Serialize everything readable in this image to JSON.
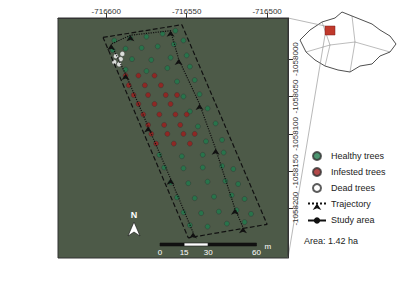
{
  "chart_data": {
    "type": "scatter",
    "xlim": [
      -716630,
      -716487
    ],
    "ylim": [
      -1058266,
      -1057945
    ],
    "xticks": [
      -716600,
      -716550,
      -716500
    ],
    "yticks": [
      -1058000,
      -1058050,
      -1058100,
      -1058150,
      -1058200
    ],
    "grid": false,
    "legend": "right",
    "series": [
      {
        "name": "Healthy trees",
        "type": "scatter",
        "color": "#1f7a4c",
        "marker": "circle",
        "values": [
          [
            -716595,
            -1057975
          ],
          [
            -716585,
            -1057972
          ],
          [
            -716575,
            -1057970
          ],
          [
            -716565,
            -1057966
          ],
          [
            -716557,
            -1057962
          ],
          [
            -716596,
            -1057988
          ],
          [
            -716588,
            -1057986
          ],
          [
            -716578,
            -1057985
          ],
          [
            -716568,
            -1057983
          ],
          [
            -716558,
            -1057980
          ],
          [
            -716552,
            -1057975
          ],
          [
            -716584,
            -1058000
          ],
          [
            -716572,
            -1058001
          ],
          [
            -716560,
            -1057998
          ],
          [
            -716550,
            -1057995
          ],
          [
            -716588,
            -1058014
          ],
          [
            -716575,
            -1058016
          ],
          [
            -716562,
            -1058012
          ],
          [
            -716548,
            -1058010
          ],
          [
            -716556,
            -1058030
          ],
          [
            -716545,
            -1058028
          ],
          [
            -716552,
            -1058050
          ],
          [
            -716542,
            -1058047
          ],
          [
            -716548,
            -1058070
          ],
          [
            -716537,
            -1058066
          ],
          [
            -716543,
            -1058090
          ],
          [
            -716532,
            -1058086
          ],
          [
            -716538,
            -1058110
          ],
          [
            -716528,
            -1058108
          ],
          [
            -716567,
            -1058128
          ],
          [
            -716553,
            -1058130
          ],
          [
            -716540,
            -1058128
          ],
          [
            -716527,
            -1058125
          ],
          [
            -716564,
            -1058145
          ],
          [
            -716552,
            -1058146
          ],
          [
            -716540,
            -1058145
          ],
          [
            -716528,
            -1058143
          ],
          [
            -716521,
            -1058147
          ],
          [
            -716560,
            -1058165
          ],
          [
            -716549,
            -1058166
          ],
          [
            -716537,
            -1058164
          ],
          [
            -716526,
            -1058163
          ],
          [
            -716518,
            -1058167
          ],
          [
            -716556,
            -1058185
          ],
          [
            -716545,
            -1058186
          ],
          [
            -716533,
            -1058184
          ],
          [
            -716522,
            -1058182
          ],
          [
            -716514,
            -1058187
          ],
          [
            -716552,
            -1058205
          ],
          [
            -716541,
            -1058206
          ],
          [
            -716530,
            -1058204
          ],
          [
            -716519,
            -1058202
          ],
          [
            -716510,
            -1058207
          ],
          [
            -716548,
            -1058222
          ],
          [
            -716537,
            -1058224
          ],
          [
            -716525,
            -1058220
          ],
          [
            -716514,
            -1058218
          ]
        ]
      },
      {
        "name": "Infested trees",
        "type": "scatter",
        "color": "#a01c1c",
        "marker": "circle",
        "values": [
          [
            -716588,
            -1058022
          ],
          [
            -716580,
            -1058022
          ],
          [
            -716570,
            -1058022
          ],
          [
            -716586,
            -1058035
          ],
          [
            -716576,
            -1058035
          ],
          [
            -716566,
            -1058035
          ],
          [
            -716583,
            -1058048
          ],
          [
            -716574,
            -1058048
          ],
          [
            -716563,
            -1058048
          ],
          [
            -716556,
            -1058048
          ],
          [
            -716580,
            -1058060
          ],
          [
            -716570,
            -1058060
          ],
          [
            -716560,
            -1058060
          ],
          [
            -716577,
            -1058074
          ],
          [
            -716567,
            -1058074
          ],
          [
            -716557,
            -1058074
          ],
          [
            -716550,
            -1058074
          ],
          [
            -716574,
            -1058088
          ],
          [
            -716564,
            -1058088
          ],
          [
            -716554,
            -1058088
          ],
          [
            -716572,
            -1058100
          ],
          [
            -716562,
            -1058100
          ],
          [
            -716552,
            -1058100
          ],
          [
            -716545,
            -1058100
          ],
          [
            -716569,
            -1058113
          ],
          [
            -716558,
            -1058113
          ],
          [
            -716548,
            -1058113
          ]
        ]
      },
      {
        "name": "Dead trees",
        "type": "scatter",
        "color": "#ffffff",
        "marker": "circle",
        "values": [
          [
            -716594,
            -1057996
          ],
          [
            -716591,
            -1058000
          ],
          [
            -716595,
            -1058004
          ],
          [
            -716590,
            -1057993
          ],
          [
            -716592,
            -1058007
          ]
        ]
      },
      {
        "name": "Trajectory",
        "type": "line",
        "color": "#111111",
        "marker": "arrow",
        "line_style": "dotted",
        "values": [
          [
            -716546,
            -1058232
          ],
          [
            -716560,
            -1058160
          ],
          [
            -716574,
            -1058090
          ],
          [
            -716588,
            -1058020
          ],
          [
            -716597,
            -1057980
          ],
          [
            -716585,
            -1057968
          ],
          [
            -716560,
            -1057962
          ],
          [
            -716555,
            -1058000
          ],
          [
            -716542,
            -1058060
          ],
          [
            -716532,
            -1058120
          ],
          [
            -716520,
            -1058200
          ],
          [
            -716515,
            -1058225
          ]
        ]
      },
      {
        "name": "Study area",
        "type": "line",
        "color": "#111111",
        "line_style": "dashed",
        "values": [
          [
            -716602,
            -1057971
          ],
          [
            -716553,
            -1057954
          ],
          [
            -716500,
            -1058221
          ],
          [
            -716549,
            -1058239
          ],
          [
            -716602,
            -1057971
          ]
        ]
      }
    ],
    "annotations": [
      "Area: 1.42 ha",
      "N"
    ],
    "scale_bar": {
      "ticks": [
        0,
        15,
        30,
        60
      ],
      "unit": "m"
    }
  }
}
